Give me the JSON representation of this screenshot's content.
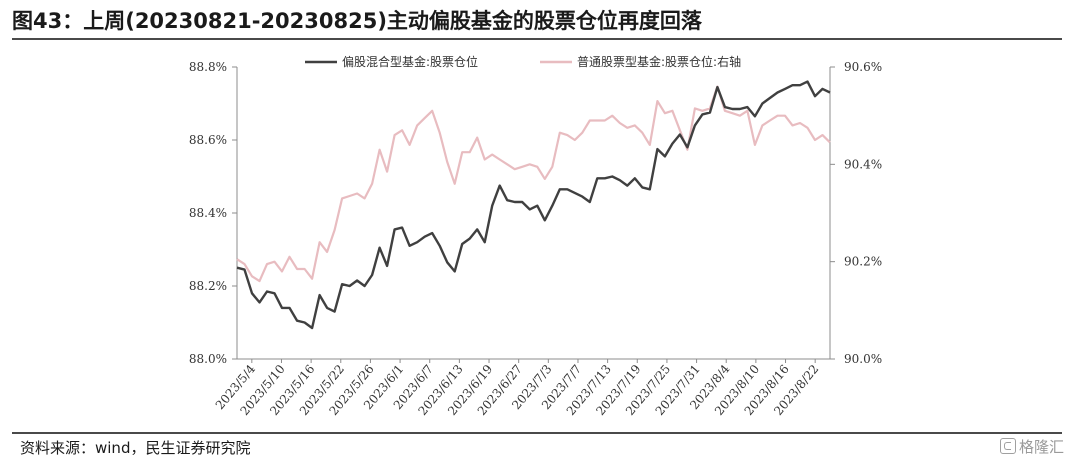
{
  "header": {
    "title": "图43：上周(20230821-20230825)主动偏股基金的股票仓位再度回落"
  },
  "footer": {
    "source": "资料来源：wind，民生证券研究院",
    "logo_text": "格隆汇"
  },
  "colors": {
    "series1": "#404040",
    "series2": "#e8bcc0",
    "axis": "#8c8c8c"
  },
  "chart_data": {
    "type": "line",
    "title": "",
    "left_axis": {
      "ylim": [
        88.0,
        88.8
      ],
      "ticks": [
        "88.0%",
        "88.2%",
        "88.4%",
        "88.6%",
        "88.8%"
      ],
      "tick_values": [
        88.0,
        88.2,
        88.4,
        88.6,
        88.8
      ]
    },
    "right_axis": {
      "ylim": [
        90.0,
        90.6
      ],
      "ticks": [
        "90.0%",
        "90.2%",
        "90.4%",
        "90.6%"
      ],
      "tick_values": [
        90.0,
        90.2,
        90.4,
        90.6
      ]
    },
    "x_tick_labels": [
      "2023/5/4",
      "2023/5/10",
      "2023/5/16",
      "2023/5/22",
      "2023/5/26",
      "2023/6/1",
      "2023/6/7",
      "2023/6/13",
      "2023/6/19",
      "2023/6/27",
      "2023/7/3",
      "2023/7/7",
      "2023/7/13",
      "2023/7/19",
      "2023/7/25",
      "2023/7/31",
      "2023/8/4",
      "2023/8/10",
      "2023/8/16",
      "2023/8/22"
    ],
    "legend_position": "top",
    "grid": false,
    "series": [
      {
        "name": "偏股混合型基金:股票仓位",
        "axis": "left",
        "values": [
          88.25,
          88.245,
          88.18,
          88.155,
          88.185,
          88.18,
          88.14,
          88.14,
          88.105,
          88.1,
          88.085,
          88.175,
          88.14,
          88.13,
          88.205,
          88.2,
          88.215,
          88.2,
          88.23,
          88.305,
          88.255,
          88.355,
          88.36,
          88.31,
          88.32,
          88.335,
          88.345,
          88.31,
          88.265,
          88.24,
          88.315,
          88.33,
          88.355,
          88.32,
          88.42,
          88.475,
          88.435,
          88.43,
          88.43,
          88.41,
          88.42,
          88.38,
          88.42,
          88.465,
          88.465,
          88.455,
          88.445,
          88.43,
          88.495,
          88.495,
          88.5,
          88.49,
          88.475,
          88.495,
          88.47,
          88.465,
          88.575,
          88.555,
          88.59,
          88.615,
          88.58,
          88.64,
          88.67,
          88.675,
          88.745,
          88.69,
          88.685,
          88.685,
          88.69,
          88.665,
          88.7,
          88.715,
          88.73,
          88.74,
          88.75,
          88.75,
          88.76,
          88.72,
          88.74,
          88.73
        ]
      },
      {
        "name": "普通股票型基金:股票仓位:右轴",
        "axis": "right",
        "values": [
          90.205,
          90.195,
          90.17,
          90.16,
          90.195,
          90.2,
          90.18,
          90.21,
          90.185,
          90.185,
          90.165,
          90.24,
          90.22,
          90.265,
          90.33,
          90.335,
          90.34,
          90.33,
          90.36,
          90.43,
          90.385,
          90.46,
          90.47,
          90.44,
          90.48,
          90.495,
          90.51,
          90.465,
          90.405,
          90.36,
          90.425,
          90.425,
          90.455,
          90.41,
          90.42,
          90.41,
          90.4,
          90.39,
          90.395,
          90.4,
          90.395,
          90.37,
          90.395,
          90.465,
          90.46,
          90.45,
          90.465,
          90.49,
          90.49,
          90.49,
          90.5,
          90.485,
          90.475,
          90.48,
          90.465,
          90.44,
          90.53,
          90.505,
          90.51,
          90.47,
          90.43,
          90.515,
          90.51,
          90.515,
          90.56,
          90.51,
          90.505,
          90.5,
          90.51,
          90.44,
          90.48,
          90.49,
          90.5,
          90.5,
          90.48,
          90.485,
          90.475,
          90.45,
          90.46,
          90.445
        ]
      }
    ]
  }
}
